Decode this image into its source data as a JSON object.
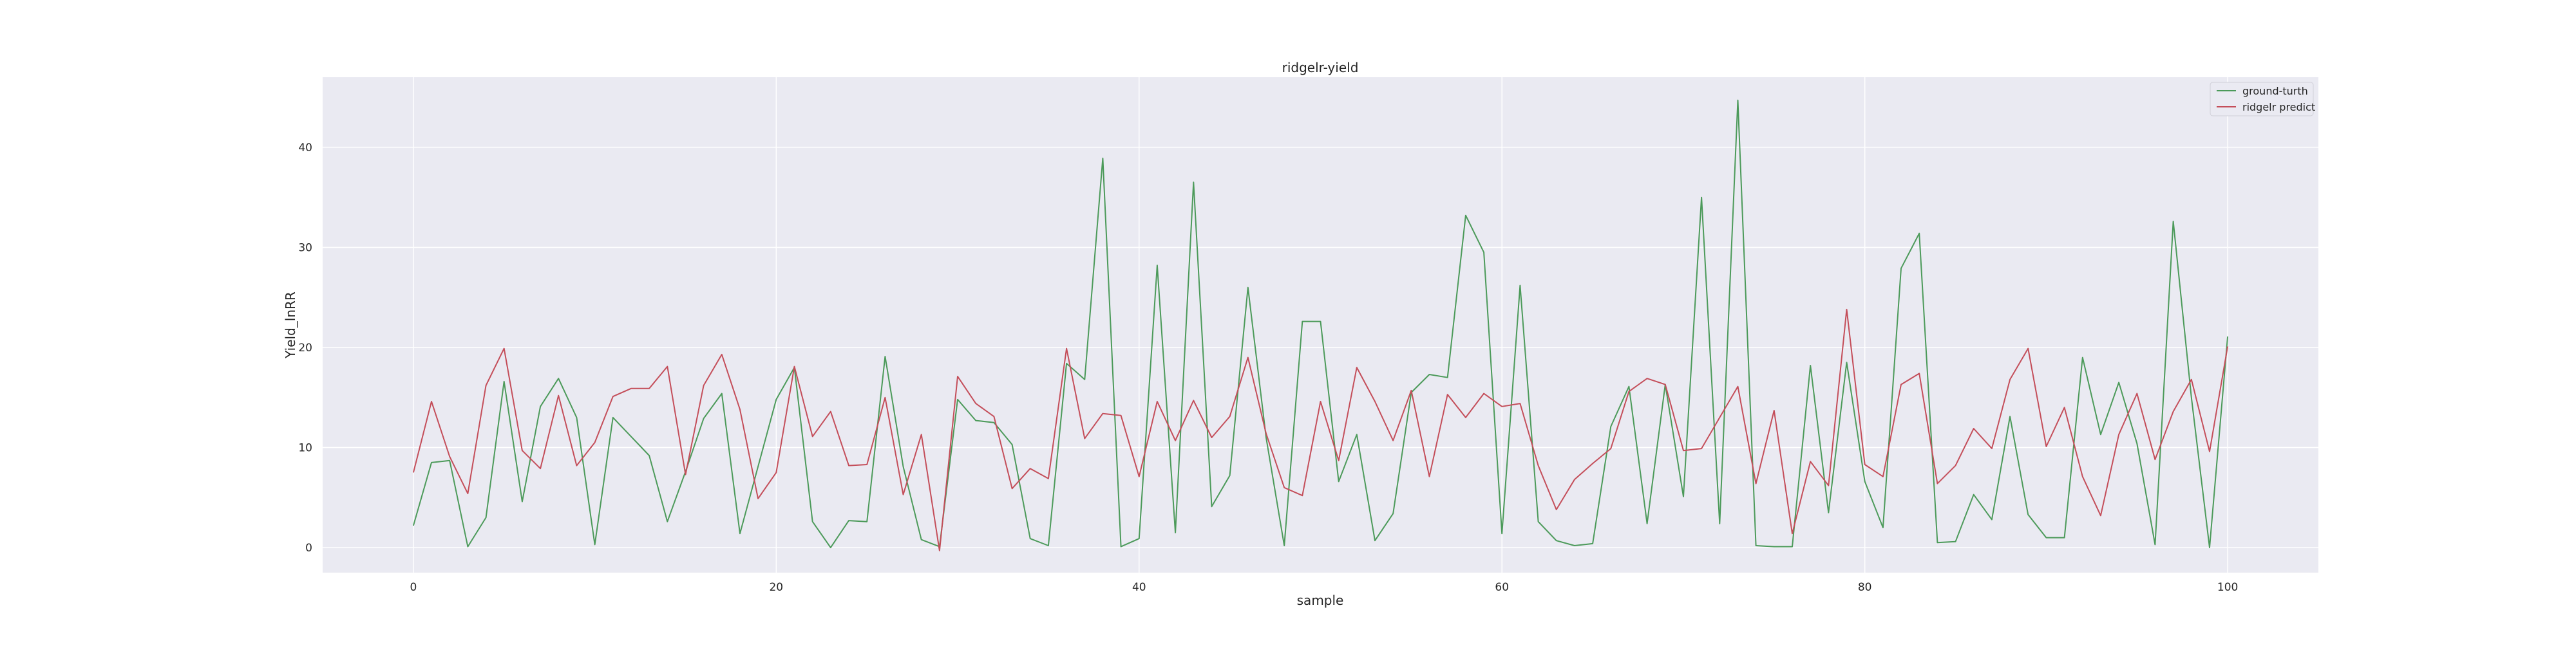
{
  "chart_data": {
    "type": "line",
    "title": "ridgelr-yield",
    "xlabel": "sample",
    "ylabel": "Yield_lnRR",
    "xlim": [
      -5,
      105
    ],
    "ylim": [
      -2.5,
      47
    ],
    "xticks": [
      0,
      20,
      40,
      60,
      80,
      100
    ],
    "yticks": [
      0,
      10,
      20,
      30,
      40
    ],
    "grid": true,
    "legend_position": "top-right",
    "x": [
      0,
      1,
      2,
      3,
      4,
      5,
      6,
      7,
      8,
      9,
      10,
      11,
      12,
      13,
      14,
      15,
      16,
      17,
      18,
      19,
      20,
      21,
      22,
      23,
      24,
      25,
      26,
      27,
      28,
      29,
      30,
      31,
      32,
      33,
      34,
      35,
      36,
      37,
      38,
      39,
      40,
      41,
      42,
      43,
      44,
      45,
      46,
      47,
      48,
      49,
      50,
      51,
      52,
      53,
      54,
      55,
      56,
      57,
      58,
      59,
      60,
      61,
      62,
      63,
      64,
      65,
      66,
      67,
      68,
      69,
      70,
      71,
      72,
      73,
      74,
      75,
      76,
      77,
      78,
      79,
      80,
      81,
      82,
      83,
      84,
      85,
      86,
      87,
      88,
      89,
      90,
      91,
      92,
      93,
      94,
      95,
      96,
      97,
      98,
      99,
      100
    ],
    "series": [
      {
        "name": "ground-turth",
        "color": "#4c9a5a",
        "values": [
          2.2,
          8.5,
          8.7,
          0.1,
          3.0,
          16.6,
          4.6,
          14.1,
          16.9,
          13.0,
          0.3,
          13.0,
          11.1,
          9.2,
          2.6,
          7.6,
          12.9,
          15.4,
          1.4,
          8.1,
          14.8,
          18.0,
          2.6,
          0.0,
          2.7,
          2.6,
          19.1,
          8.1,
          0.8,
          0.1,
          14.8,
          12.7,
          12.5,
          10.3,
          0.9,
          0.2,
          18.4,
          16.8,
          38.9,
          0.1,
          0.9,
          28.2,
          1.5,
          36.5,
          4.1,
          7.2,
          26.0,
          11.0,
          0.2,
          22.6,
          22.6,
          6.6,
          11.3,
          0.7,
          3.4,
          15.5,
          17.3,
          17.0,
          33.2,
          29.5,
          1.4,
          26.2,
          2.6,
          0.7,
          0.2,
          0.4,
          12.1,
          16.1,
          2.4,
          16.3,
          5.1,
          35.0,
          2.4,
          44.7,
          0.2,
          0.1,
          0.1,
          18.2,
          3.5,
          18.5,
          6.6,
          2.0,
          27.9,
          31.4,
          0.5,
          0.6,
          5.3,
          2.8,
          13.1,
          3.3,
          1.0,
          1.0,
          19.0,
          11.3,
          16.5,
          10.4,
          0.3,
          32.6,
          15.0,
          0.0,
          21.1
        ]
      },
      {
        "name": "ridgelr predict",
        "color": "#c44e5a",
        "values": [
          7.5,
          14.6,
          9.1,
          5.4,
          16.2,
          19.9,
          9.7,
          7.9,
          15.2,
          8.2,
          10.5,
          15.1,
          15.9,
          15.9,
          18.1,
          7.3,
          16.2,
          19.3,
          13.8,
          4.9,
          7.5,
          18.1,
          11.1,
          13.6,
          8.2,
          8.3,
          15.0,
          5.3,
          11.3,
          -0.3,
          17.1,
          14.4,
          13.1,
          5.9,
          7.9,
          6.9,
          19.9,
          10.9,
          13.4,
          13.2,
          7.1,
          14.6,
          10.7,
          14.7,
          11.0,
          13.1,
          19.0,
          11.4,
          6.0,
          5.2,
          14.6,
          8.7,
          18.0,
          14.6,
          10.7,
          15.7,
          7.1,
          15.3,
          13.0,
          15.4,
          14.1,
          14.4,
          8.2,
          3.8,
          6.8,
          8.4,
          9.9,
          15.6,
          16.9,
          16.3,
          9.7,
          9.9,
          13.0,
          16.1,
          6.4,
          13.7,
          1.4,
          8.6,
          6.2,
          23.8,
          8.3,
          7.1,
          16.3,
          17.4,
          6.4,
          8.2,
          11.9,
          9.9,
          16.8,
          19.9,
          10.1,
          14.0,
          7.1,
          3.2,
          11.3,
          15.4,
          8.8,
          13.6,
          16.8,
          9.6,
          20.1
        ]
      }
    ]
  }
}
